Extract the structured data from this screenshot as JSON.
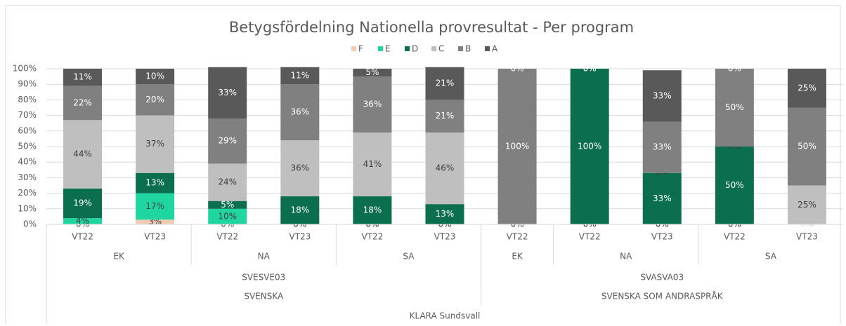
{
  "chart_data": {
    "type": "stacked_bar",
    "title": "Betygsfördelning Nationella provresultat - Per program",
    "categories": [
      "VT22",
      "VT23",
      "VT22",
      "VT23",
      "VT22",
      "VT23",
      "VT22",
      "VT22",
      "VT23",
      "VT22",
      "VT23"
    ],
    "levels": [
      {
        "labels": [
          "EK",
          "NA",
          "SA",
          "EK",
          "NA",
          "SA"
        ],
        "counts": [
          2,
          2,
          2,
          1,
          2,
          2
        ]
      },
      {
        "labels": [
          "SVESVE03",
          "SVASVA03"
        ],
        "counts": [
          6,
          5
        ]
      },
      {
        "labels": [
          "SVENSKA",
          "SVENSKA SOM ANDRASPRÅK"
        ],
        "counts": [
          6,
          5
        ]
      },
      {
        "labels": [
          "KLARA Sundsvall"
        ],
        "counts": [
          11
        ]
      }
    ],
    "series": [
      {
        "name": "F",
        "color": "#f4cbb5",
        "values": [
          0,
          3,
          0,
          0,
          0,
          0,
          0,
          0,
          0,
          0,
          0
        ],
        "value_labels": [
          "0%",
          "3%",
          "0%",
          "0%",
          "0%",
          "0%",
          "0%",
          "0%",
          "0%",
          "0%",
          "0%"
        ]
      },
      {
        "name": "E",
        "color": "#1fd6a0",
        "values": [
          4,
          17,
          10,
          0,
          0,
          0,
          0,
          0,
          0,
          0,
          0
        ],
        "value_labels": [
          "4%",
          "17%",
          "10%",
          "0%",
          "0%",
          "0%",
          "0%",
          "0%",
          "0%",
          "0%",
          "0%"
        ]
      },
      {
        "name": "D",
        "color": "#0a6e4f",
        "values": [
          19,
          13,
          5,
          18,
          18,
          13,
          0,
          100,
          33,
          50,
          0
        ],
        "value_labels": [
          "19%",
          "13%",
          "5%",
          "18%",
          "18%",
          "13%",
          "0%",
          "100%",
          "33%",
          "50%",
          "0%"
        ]
      },
      {
        "name": "C",
        "color": "#bfbfbf",
        "values": [
          44,
          37,
          24,
          36,
          41,
          46,
          0,
          0,
          0,
          0,
          25
        ],
        "value_labels": [
          "44%",
          "37%",
          "24%",
          "36%",
          "41%",
          "46%",
          "0%",
          "0%",
          "0%",
          "0%",
          "25%"
        ]
      },
      {
        "name": "B",
        "color": "#808080",
        "values": [
          22,
          20,
          29,
          36,
          36,
          21,
          100,
          0,
          33,
          50,
          50
        ],
        "value_labels": [
          "22%",
          "20%",
          "29%",
          "36%",
          "36%",
          "21%",
          "100%",
          "0%",
          "33%",
          "50%",
          "50%"
        ]
      },
      {
        "name": "A",
        "color": "#595959",
        "values": [
          11,
          10,
          33,
          11,
          5,
          21,
          0,
          0,
          33,
          0,
          25
        ],
        "value_labels": [
          "11%",
          "10%",
          "33%",
          "11%",
          "5%",
          "21%",
          "0%",
          "0%",
          "33%",
          "0%",
          "25%"
        ]
      }
    ],
    "ylim": [
      0,
      100
    ],
    "yticks": [
      {
        "value": 0,
        "label": "0%"
      },
      {
        "value": 10,
        "label": "10%"
      },
      {
        "value": 20,
        "label": "20%"
      },
      {
        "value": 30,
        "label": "30%"
      },
      {
        "value": 40,
        "label": "40%"
      },
      {
        "value": 50,
        "label": "50%"
      },
      {
        "value": 60,
        "label": "60%"
      },
      {
        "value": 70,
        "label": "70%"
      },
      {
        "value": 80,
        "label": "80%"
      },
      {
        "value": 90,
        "label": "90%"
      },
      {
        "value": 100,
        "label": "100%"
      }
    ],
    "legend": "top"
  }
}
